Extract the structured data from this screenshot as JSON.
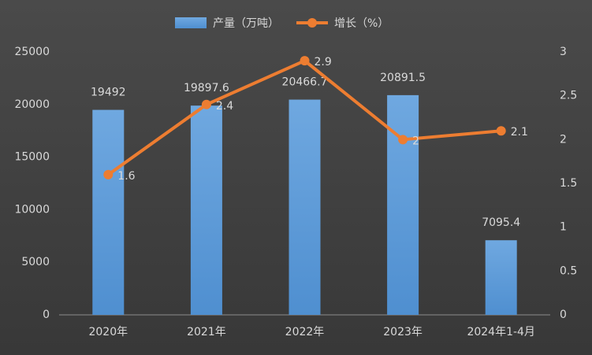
{
  "chart_data": {
    "type": "combo",
    "categories": [
      "2020年",
      "2021年",
      "2022年",
      "2023年",
      "2024年1-4月"
    ],
    "series": [
      {
        "name": "产量（万吨）",
        "type": "bar",
        "axis": "y",
        "color": "#5b9bd5",
        "values": [
          19492,
          19897.6,
          20466.7,
          20891.5,
          7095.4
        ]
      },
      {
        "name": "增长（%）",
        "type": "line",
        "axis": "y2",
        "color": "#ed7d31",
        "values": [
          1.6,
          2.4,
          2.9,
          2,
          2.1
        ]
      }
    ],
    "ylim": [
      0,
      25000
    ],
    "yticks": [
      0,
      5000,
      10000,
      15000,
      20000,
      25000
    ],
    "y2lim": [
      0,
      3
    ],
    "y2ticks": [
      0,
      0.5,
      1,
      1.5,
      2,
      2.5,
      3
    ],
    "grid": false,
    "legend": "top"
  }
}
